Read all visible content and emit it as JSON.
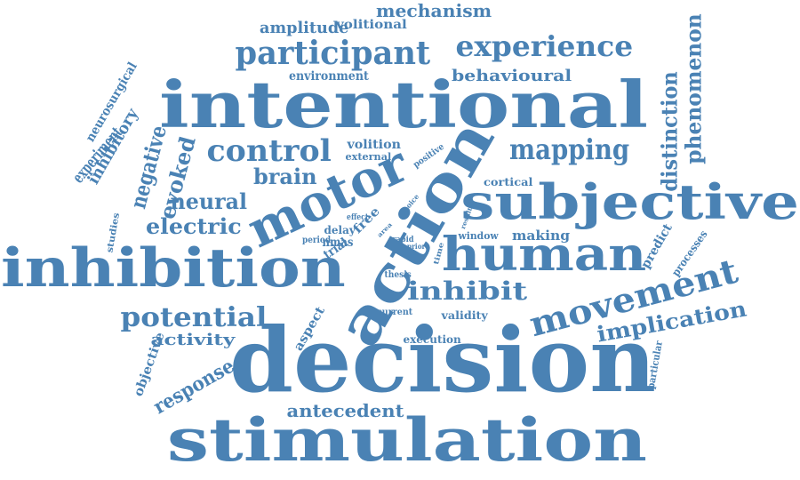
{
  "cloud": {
    "color": "#4a82b4",
    "words": [
      {
        "text": "decision",
        "rotated": false
      },
      {
        "text": "intentional",
        "rotated": false
      },
      {
        "text": "stimulation",
        "rotated": false
      },
      {
        "text": "inhibition",
        "rotated": false
      },
      {
        "text": "action",
        "rotated": true
      },
      {
        "text": "subjective",
        "rotated": false
      },
      {
        "text": "motor",
        "rotated": true
      },
      {
        "text": "human",
        "rotated": false
      },
      {
        "text": "movement",
        "rotated": true
      },
      {
        "text": "participant",
        "rotated": false
      },
      {
        "text": "experience",
        "rotated": false
      },
      {
        "text": "mapping",
        "rotated": false
      },
      {
        "text": "control",
        "rotated": false
      },
      {
        "text": "potential",
        "rotated": false
      },
      {
        "text": "implication",
        "rotated": true
      },
      {
        "text": "inhibit",
        "rotated": false
      },
      {
        "text": "phenomenon",
        "rotated": true
      },
      {
        "text": "distinction",
        "rotated": true
      },
      {
        "text": "antecedent",
        "rotated": false
      },
      {
        "text": "evoked",
        "rotated": true
      },
      {
        "text": "negative",
        "rotated": true
      },
      {
        "text": "electric",
        "rotated": false
      },
      {
        "text": "neural",
        "rotated": false
      },
      {
        "text": "brain",
        "rotated": false
      },
      {
        "text": "response",
        "rotated": true
      },
      {
        "text": "mechanism",
        "rotated": false
      },
      {
        "text": "behavioural",
        "rotated": false
      },
      {
        "text": "amplitude",
        "rotated": false
      },
      {
        "text": "activity",
        "rotated": false
      },
      {
        "text": "experiment",
        "rotated": true
      },
      {
        "text": "inhibitory",
        "rotated": true
      },
      {
        "text": "neurosurgical",
        "rotated": true
      },
      {
        "text": "volitional",
        "rotated": false
      },
      {
        "text": "environment",
        "rotated": false
      },
      {
        "text": "objective",
        "rotated": true
      },
      {
        "text": "aspect",
        "rotated": true
      },
      {
        "text": "making",
        "rotated": false
      },
      {
        "text": "predict",
        "rotated": true
      },
      {
        "text": "processes",
        "rotated": true
      },
      {
        "text": "volition",
        "rotated": false
      },
      {
        "text": "external",
        "rotated": false
      },
      {
        "text": "cortical",
        "rotated": false
      },
      {
        "text": "execution",
        "rotated": false
      },
      {
        "text": "validity",
        "rotated": false
      },
      {
        "text": "trial",
        "rotated": true
      },
      {
        "text": "positive",
        "rotated": true
      },
      {
        "text": "particular",
        "rotated": true
      },
      {
        "text": "window",
        "rotated": false
      },
      {
        "text": "current",
        "rotated": false
      },
      {
        "text": "free",
        "rotated": true
      },
      {
        "text": "studies",
        "rotated": true
      },
      {
        "text": "delay",
        "rotated": false
      },
      {
        "text": "period",
        "rotated": false
      },
      {
        "text": "nmas",
        "rotated": false
      },
      {
        "text": "effect",
        "rotated": false
      },
      {
        "text": "time",
        "rotated": true
      },
      {
        "text": "thesis",
        "rotated": false
      },
      {
        "text": "rapid",
        "rotated": false
      },
      {
        "text": "prior",
        "rotated": false
      },
      {
        "text": "area",
        "rotated": true
      },
      {
        "text": "choice",
        "rotated": true
      },
      {
        "text": "result",
        "rotated": true
      }
    ]
  }
}
